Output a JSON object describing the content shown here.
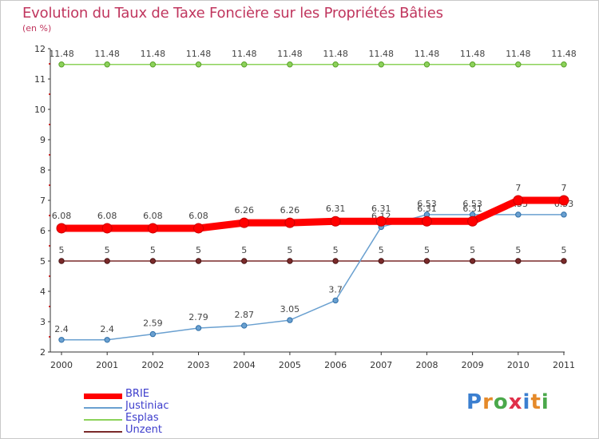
{
  "header": {
    "title": "Evolution du Taux de Taxe Foncière sur les Propriétés Bâties",
    "unit": "(en %)"
  },
  "logo": {
    "text": "Proxiti",
    "letters": [
      "P",
      "r",
      "o",
      "x",
      "i",
      "t",
      "i"
    ],
    "colors": [
      "#3b7fd0",
      "#e58a2a",
      "#4aa84a",
      "#e0304a",
      "#3b7fd0",
      "#e58a2a",
      "#4aa84a"
    ]
  },
  "chart_data": {
    "type": "line",
    "title": "Evolution du Taux de Taxe Foncière sur les Propriétés Bâties",
    "ylabel": "(en %)",
    "xlabel": "",
    "categories": [
      "2000",
      "2001",
      "2002",
      "2003",
      "2004",
      "2005",
      "2006",
      "2007",
      "2008",
      "2009",
      "2010",
      "2011"
    ],
    "ylim": [
      2,
      12
    ],
    "yticks": [
      "2",
      "3",
      "4",
      "5",
      "6",
      "7",
      "8",
      "9",
      "10",
      "11",
      "12"
    ],
    "grid": false,
    "legend": "bottom-left",
    "series": [
      {
        "name": "BRIE",
        "color": "#ff0000",
        "values": [
          6.08,
          6.08,
          6.08,
          6.08,
          6.26,
          6.26,
          6.31,
          6.31,
          6.31,
          6.31,
          7,
          7
        ],
        "labels": [
          "6.08",
          "6.08",
          "6.08",
          "6.08",
          "6.26",
          "6.26",
          "6.31",
          "6.31",
          "6.31",
          "6.31",
          "7",
          "7"
        ]
      },
      {
        "name": "Justiniac",
        "color": "#6aa0d0",
        "values": [
          2.4,
          2.4,
          2.59,
          2.79,
          2.87,
          3.05,
          3.7,
          6.12,
          6.53,
          6.53,
          6.53,
          6.53
        ],
        "labels": [
          "2.4",
          "2.4",
          "2.59",
          "2.79",
          "2.87",
          "3.05",
          "3.7",
          "6.12",
          "6.53",
          "6.53",
          "6.53",
          "6.53"
        ]
      },
      {
        "name": "Esplas",
        "color": "#8cd25a",
        "values": [
          11.48,
          11.48,
          11.48,
          11.48,
          11.48,
          11.48,
          11.48,
          11.48,
          11.48,
          11.48,
          11.48,
          11.48
        ],
        "labels": [
          "11.48",
          "11.48",
          "11.48",
          "11.48",
          "11.48",
          "11.48",
          "11.48",
          "11.48",
          "11.48",
          "11.48",
          "11.48",
          "11.48"
        ]
      },
      {
        "name": "Unzent",
        "color": "#7a2a2a",
        "values": [
          5,
          5,
          5,
          5,
          5,
          5,
          5,
          5,
          5,
          5,
          5,
          5
        ],
        "labels": [
          "5",
          "5",
          "5",
          "5",
          "5",
          "5",
          "5",
          "5",
          "5",
          "5",
          "5",
          "5"
        ]
      }
    ]
  }
}
